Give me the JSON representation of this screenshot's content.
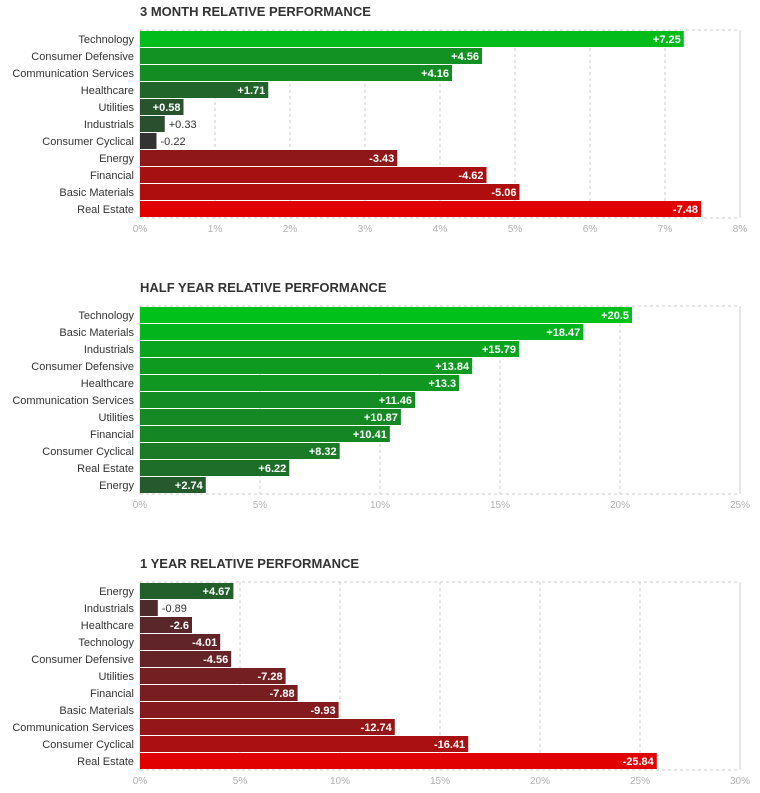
{
  "chart_data": [
    {
      "type": "bar",
      "orientation": "horizontal",
      "title": "3 MONTH RELATIVE PERFORMANCE",
      "xlim": [
        0,
        8
      ],
      "ticks": [
        0,
        1,
        2,
        3,
        4,
        5,
        6,
        7,
        8
      ],
      "tick_labels": [
        "0%",
        "1%",
        "2%",
        "3%",
        "4%",
        "5%",
        "6%",
        "7%",
        "8%"
      ],
      "categories": [
        "Technology",
        "Consumer Defensive",
        "Communication Services",
        "Healthcare",
        "Utilities",
        "Industrials",
        "Consumer Cyclical",
        "Energy",
        "Financial",
        "Basic Materials",
        "Real Estate"
      ],
      "values": [
        7.25,
        4.56,
        4.16,
        1.71,
        0.58,
        0.33,
        -0.22,
        -3.43,
        -4.62,
        -5.06,
        -7.48
      ],
      "value_labels": [
        "+7.25",
        "+4.56",
        "+4.16",
        "+1.71",
        "+0.58",
        "+0.33",
        "-0.22",
        "-3.43",
        "-4.62",
        "-5.06",
        "-7.48"
      ],
      "bar_length": "absolute value",
      "grid": true
    },
    {
      "type": "bar",
      "orientation": "horizontal",
      "title": "HALF YEAR RELATIVE PERFORMANCE",
      "xlim": [
        0,
        25
      ],
      "ticks": [
        0,
        5,
        10,
        15,
        20,
        25
      ],
      "tick_labels": [
        "0%",
        "5%",
        "10%",
        "15%",
        "20%",
        "25%"
      ],
      "categories": [
        "Technology",
        "Basic Materials",
        "Industrials",
        "Consumer Defensive",
        "Healthcare",
        "Communication Services",
        "Utilities",
        "Financial",
        "Consumer Cyclical",
        "Real Estate",
        "Energy"
      ],
      "values": [
        20.5,
        18.47,
        15.79,
        13.84,
        13.3,
        11.46,
        10.87,
        10.41,
        8.32,
        6.22,
        2.74
      ],
      "value_labels": [
        "+20.5",
        "+18.47",
        "+15.79",
        "+13.84",
        "+13.3",
        "+11.46",
        "+10.87",
        "+10.41",
        "+8.32",
        "+6.22",
        "+2.74"
      ],
      "bar_length": "absolute value",
      "grid": true
    },
    {
      "type": "bar",
      "orientation": "horizontal",
      "title": "1 YEAR RELATIVE PERFORMANCE",
      "xlim": [
        0,
        30
      ],
      "ticks": [
        0,
        5,
        10,
        15,
        20,
        25,
        30
      ],
      "tick_labels": [
        "0%",
        "5%",
        "10%",
        "15%",
        "20%",
        "25%",
        "30%"
      ],
      "categories": [
        "Energy",
        "Industrials",
        "Healthcare",
        "Technology",
        "Consumer Defensive",
        "Utilities",
        "Financial",
        "Basic Materials",
        "Communication Services",
        "Consumer Cyclical",
        "Real Estate"
      ],
      "values": [
        4.67,
        -0.89,
        -2.6,
        -4.01,
        -4.56,
        -7.28,
        -7.88,
        -9.93,
        -12.74,
        -16.41,
        -25.84
      ],
      "value_labels": [
        "+4.67",
        "-0.89",
        "-2.6",
        "-4.01",
        "-4.56",
        "-7.28",
        "-7.88",
        "-9.93",
        "-12.74",
        "-16.41",
        "-25.84"
      ],
      "bar_length": "absolute value",
      "grid": true
    }
  ],
  "colors": {
    "positive_strong": "#00c01a",
    "positive_weak": "#2b4a2f",
    "neutral": "#333333",
    "negative_weak": "#4a2b2f",
    "negative_strong": "#e00000",
    "grid": "#cccccc",
    "title_text": "#333333",
    "tick_text": "#b0b0b0"
  }
}
